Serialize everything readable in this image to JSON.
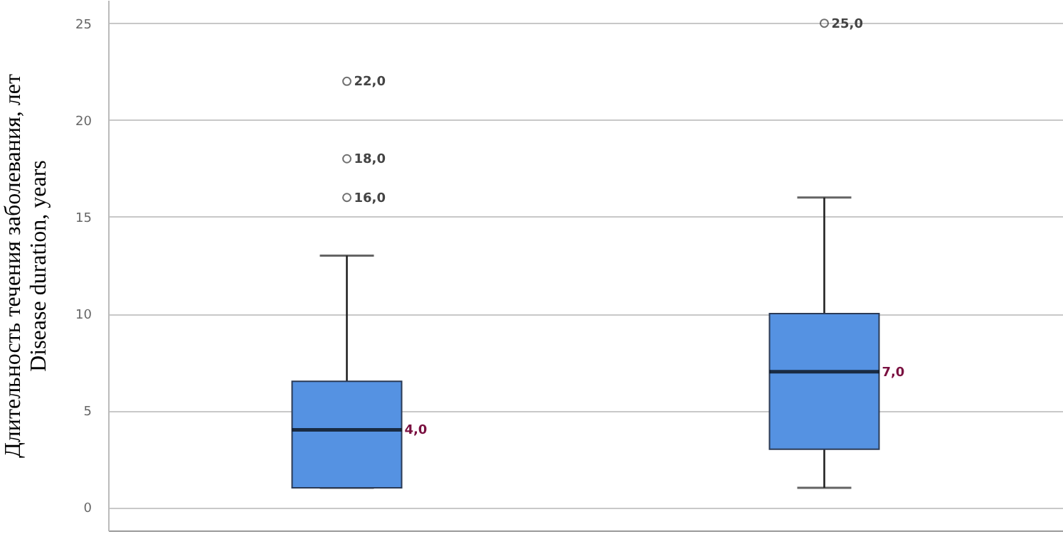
{
  "chart_data": {
    "type": "box",
    "categories": [
      null,
      null
    ],
    "color": "#5592e2",
    "boxes": [
      {
        "low": 1,
        "q1": 1,
        "median": 4,
        "q3": 6.5,
        "high": 13,
        "outliers": [
          16,
          18,
          22
        ]
      },
      {
        "low": 1,
        "q1": 3,
        "median": 7,
        "q3": 10,
        "high": 16,
        "outliers": [
          25
        ]
      }
    ],
    "ylim": [
      -1.2,
      26.2
    ],
    "yticks": [
      0,
      5,
      10,
      15,
      20,
      25
    ],
    "grid": "y",
    "ylabel": "Длительность течения заболевания, лет\nDisease duration, years",
    "annotations": [
      "16,0",
      "18,0",
      "22,0",
      "25,0",
      "4,0",
      "7,0"
    ]
  }
}
